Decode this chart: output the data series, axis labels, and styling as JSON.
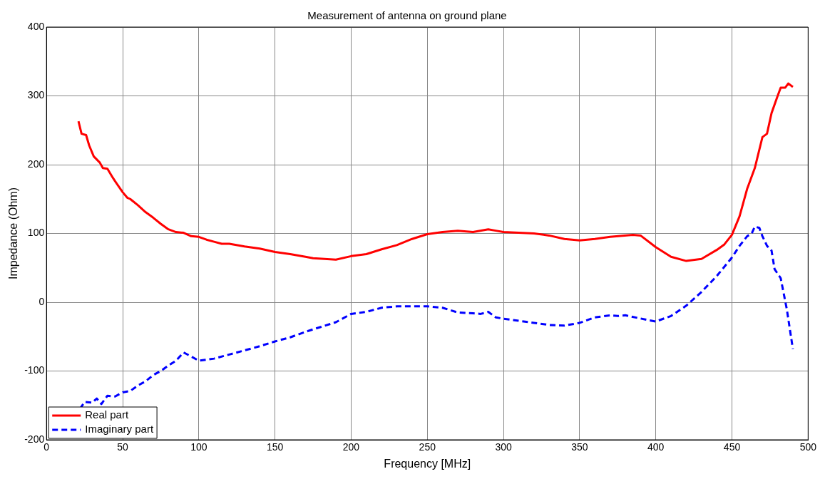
{
  "chart_data": {
    "type": "line",
    "title": "Measurement of antenna on ground plane",
    "xlabel": "Frequency [MHz]",
    "ylabel": "Impedance (Ohm)",
    "xlim": [
      0,
      500
    ],
    "xticks": [
      0,
      50,
      100,
      150,
      200,
      250,
      300,
      350,
      400,
      450,
      500
    ],
    "ylim": [
      -200,
      400
    ],
    "yticks": [
      -200,
      -100,
      0,
      100,
      200,
      300,
      400
    ],
    "grid": true,
    "legend": "bottom left",
    "marker": "none",
    "series": [
      {
        "name": "Real part",
        "color": "#ff0000",
        "line_style": "solid",
        "x": [
          21,
          23,
          26,
          28,
          31,
          35,
          37,
          40,
          43,
          45,
          50,
          53,
          55,
          60,
          65,
          70,
          75,
          80,
          85,
          90,
          95,
          100,
          105,
          110,
          115,
          120,
          130,
          140,
          150,
          160,
          170,
          175,
          190,
          200,
          210,
          220,
          230,
          240,
          250,
          260,
          270,
          280,
          290,
          295,
          300,
          320,
          330,
          340,
          350,
          360,
          370,
          385,
          390,
          400,
          410,
          420,
          430,
          440,
          445,
          450,
          455,
          460,
          465,
          470,
          473,
          476,
          480,
          482,
          485,
          487,
          490
        ],
        "values": [
          263,
          245,
          243,
          228,
          212,
          203,
          195,
          194,
          183,
          176,
          160,
          152,
          150,
          141,
          131,
          123,
          114,
          106,
          102,
          101,
          96,
          95,
          91,
          88,
          85,
          85,
          81,
          78,
          73,
          70,
          66,
          64,
          62,
          67,
          70,
          77,
          83,
          92,
          99,
          102,
          104,
          102,
          106,
          104,
          102,
          100,
          97,
          92,
          90,
          92,
          95,
          98,
          97,
          80,
          66,
          60,
          63,
          76,
          84,
          98,
          125,
          165,
          195,
          240,
          245,
          275,
          300,
          312,
          312,
          318,
          313
        ]
      },
      {
        "name": "Imaginary part",
        "color": "#0000ff",
        "line_style": "dashed",
        "x": [
          22,
          25,
          30,
          33,
          36,
          40,
          45,
          50,
          55,
          60,
          65,
          70,
          75,
          80,
          85,
          90,
          95,
          100,
          110,
          120,
          130,
          140,
          150,
          160,
          170,
          180,
          190,
          200,
          210,
          220,
          230,
          240,
          250,
          260,
          270,
          280,
          285,
          290,
          295,
          300,
          320,
          330,
          340,
          350,
          360,
          370,
          375,
          380,
          395,
          400,
          410,
          420,
          430,
          440,
          450,
          455,
          460,
          463,
          465,
          468,
          470,
          473,
          476,
          478,
          482,
          486,
          490
        ],
        "values": [
          -155,
          -145,
          -146,
          -140,
          -148,
          -136,
          -137,
          -131,
          -129,
          -121,
          -115,
          -106,
          -100,
          -92,
          -85,
          -73,
          -79,
          -85,
          -82,
          -76,
          -70,
          -64,
          -57,
          -51,
          -43,
          -36,
          -29,
          -17,
          -14,
          -8,
          -6,
          -6,
          -6,
          -8,
          -15,
          -16,
          -17,
          -14,
          -22,
          -24,
          -30,
          -33,
          -34,
          -30,
          -22,
          -19,
          -20,
          -19,
          -26,
          -28,
          -20,
          -5,
          15,
          38,
          65,
          82,
          96,
          100,
          110,
          108,
          96,
          82,
          75,
          48,
          35,
          -10,
          -68
        ]
      }
    ]
  }
}
